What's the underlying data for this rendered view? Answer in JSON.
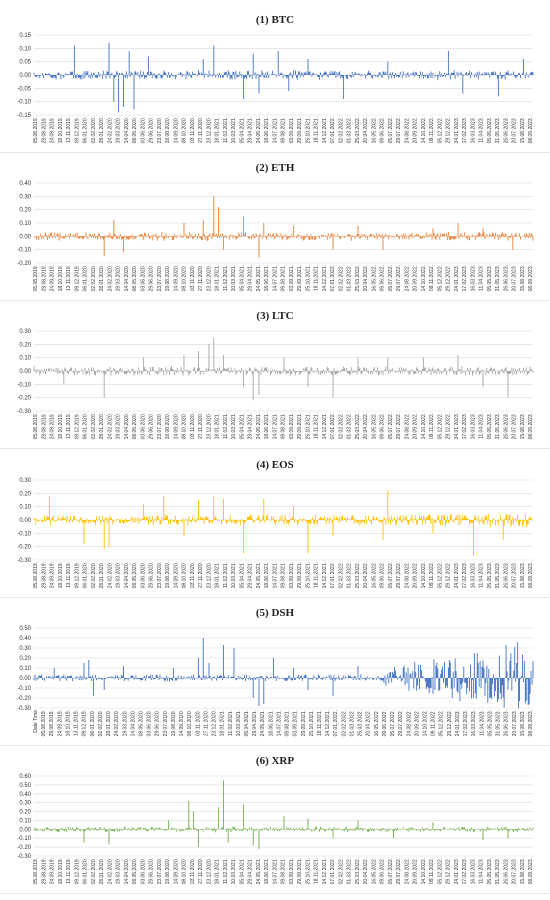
{
  "chart_data": [
    {
      "type": "line",
      "title": "(1) BTC",
      "color": "#4472C4",
      "ylim": [
        -0.15,
        0.15
      ],
      "yticks": [
        "0.15",
        "0.10",
        "0.05",
        "0.00",
        "-0.05",
        "-0.10",
        "-0.15"
      ],
      "xticks": [
        "05.08.2019.",
        "29.08.2019.",
        "24.09.2019.",
        "18.10.2019.",
        "13.11.2019.",
        "09.12.2019.",
        "06.01.2020.",
        "02.02.2020.",
        "28.01.2020.",
        "24.02.2020.",
        "19.03.2020.",
        "14.04.2020.",
        "08.05.2020.",
        "03.06.2020.",
        "29.06.2020.",
        "23.07.2020.",
        "19.08.2020.",
        "14.09.2020.",
        "08.10.2020.",
        "03.11.2020.",
        "27.11.2020.",
        "23.12.2020.",
        "18.01.2021.",
        "11.02.2021.",
        "10.03.2021.",
        "05.04.2021.",
        "29.04.2021.",
        "24.05.2021.",
        "18.06.2021.",
        "14.07.2021.",
        "09.08.2021.",
        "03.09.2021.",
        "29.09.2021.",
        "25.10.2021.",
        "18.11.2021.",
        "14.12.2021.",
        "07.01.2022.",
        "02.02.2022.",
        "01.03.2022.",
        "25.03.2022.",
        "20.04.2022.",
        "16.05.2022.",
        "09.06.2022.",
        "05.07.2022.",
        "29.07.2022.",
        "24.08.2022.",
        "20.09.2022.",
        "14.10.2022.",
        "09.11.2022.",
        "05.12.2022.",
        "29.12.2022.",
        "24.01.2023.",
        "17.02.2023.",
        "16.03.2023.",
        "11.04.2023.",
        "05.05.2023.",
        "31.05.2023.",
        "26.06.2023.",
        "20.07.2023.",
        "15.08.2023.",
        "08.09.2023."
      ],
      "base_amp": [
        0.012,
        0.02
      ],
      "spikes": [
        [
          0.08,
          0.11
        ],
        [
          0.15,
          0.12
        ],
        [
          0.16,
          -0.1
        ],
        [
          0.17,
          -0.14
        ],
        [
          0.18,
          -0.12
        ],
        [
          0.19,
          0.09
        ],
        [
          0.2,
          -0.13
        ],
        [
          0.23,
          0.07
        ],
        [
          0.34,
          0.06
        ],
        [
          0.36,
          0.11
        ],
        [
          0.42,
          -0.09
        ],
        [
          0.44,
          0.08
        ],
        [
          0.45,
          -0.07
        ],
        [
          0.49,
          0.09
        ],
        [
          0.51,
          -0.06
        ],
        [
          0.55,
          0.06
        ],
        [
          0.62,
          -0.09
        ],
        [
          0.71,
          0.05
        ],
        [
          0.83,
          0.09
        ],
        [
          0.86,
          -0.07
        ],
        [
          0.93,
          -0.08
        ],
        [
          0.98,
          0.06
        ]
      ],
      "late_growth": 0
    },
    {
      "type": "line",
      "title": "(2) ETH",
      "color": "#ED7D31",
      "ylim": [
        -0.2,
        0.4
      ],
      "yticks": [
        "0.40",
        "0.30",
        "0.20",
        "0.10",
        "0.00",
        "-0.10",
        "-0.20"
      ],
      "xticks": [
        "05.08.2019.",
        "29.08.2019.",
        "24.09.2019.",
        "18.10.2019.",
        "13.11.2019.",
        "09.12.2019.",
        "06.01.2020.",
        "02.02.2020.",
        "28.01.2020.",
        "24.02.2020.",
        "19.03.2020.",
        "14.04.2020.",
        "08.05.2020.",
        "03.06.2020.",
        "29.06.2020.",
        "23.07.2020.",
        "19.08.2020.",
        "14.09.2020.",
        "08.10.2020.",
        "03.11.2020.",
        "27.11.2020.",
        "23.12.2020.",
        "18.01.2021.",
        "11.02.2021.",
        "10.03.2021.",
        "05.04.2021.",
        "29.04.2021.",
        "24.05.2021.",
        "18.06.2021.",
        "14.07.2021.",
        "09.08.2021.",
        "03.09.2021.",
        "29.09.2021.",
        "25.10.2021.",
        "18.11.2021.",
        "14.12.2021.",
        "07.01.2022.",
        "02.02.2022.",
        "01.03.2022.",
        "25.03.2022.",
        "20.04.2022.",
        "16.05.2022.",
        "09.06.2022.",
        "05.07.2022.",
        "29.07.2022.",
        "24.08.2022.",
        "20.09.2022.",
        "14.10.2022.",
        "09.11.2022.",
        "05.12.2022.",
        "29.12.2022.",
        "24.01.2023.",
        "17.02.2023.",
        "16.03.2023.",
        "11.04.2023.",
        "05.05.2023.",
        "31.05.2023.",
        "26.06.2023.",
        "20.07.2023.",
        "15.08.2023.",
        "08.09.2023."
      ],
      "base_amp": [
        0.02,
        0.035
      ],
      "spikes": [
        [
          0.14,
          -0.15
        ],
        [
          0.16,
          0.12
        ],
        [
          0.18,
          -0.12
        ],
        [
          0.3,
          0.1
        ],
        [
          0.34,
          0.12
        ],
        [
          0.36,
          0.3
        ],
        [
          0.37,
          0.22
        ],
        [
          0.38,
          -0.1
        ],
        [
          0.42,
          0.15
        ],
        [
          0.45,
          -0.16
        ],
        [
          0.46,
          0.1
        ],
        [
          0.52,
          0.08
        ],
        [
          0.6,
          -0.1
        ],
        [
          0.65,
          0.08
        ],
        [
          0.7,
          -0.1
        ],
        [
          0.8,
          0.06
        ],
        [
          0.85,
          0.1
        ],
        [
          0.9,
          0.06
        ],
        [
          0.96,
          -0.1
        ]
      ],
      "late_growth": 0
    },
    {
      "type": "line",
      "title": "(3) LTC",
      "color": "#A5A5A5",
      "ylim": [
        -0.3,
        0.3
      ],
      "yticks": [
        "0.30",
        "0.20",
        "0.10",
        "0.00",
        "-0.10",
        "-0.20",
        "-0.30"
      ],
      "xticks": [
        "05.08.2019.",
        "29.08.2019.",
        "24.09.2019.",
        "18.10.2019.",
        "13.11.2019.",
        "09.12.2019.",
        "06.01.2020.",
        "02.02.2020.",
        "28.01.2020.",
        "24.02.2020.",
        "19.03.2020.",
        "14.04.2020.",
        "08.05.2020.",
        "03.06.2020.",
        "29.06.2020.",
        "23.07.2020.",
        "19.08.2020.",
        "14.09.2020.",
        "08.10.2020.",
        "03.11.2020.",
        "27.11.2020.",
        "23.12.2020.",
        "18.01.2021.",
        "11.02.2021.",
        "10.03.2021.",
        "05.04.2021.",
        "29.04.2021.",
        "24.05.2021.",
        "18.06.2021.",
        "14.07.2021.",
        "09.08.2021.",
        "03.09.2021.",
        "29.09.2021.",
        "25.10.2021.",
        "18.11.2021.",
        "14.12.2021.",
        "07.01.2022.",
        "02.02.2022.",
        "01.03.2022.",
        "25.03.2022.",
        "20.04.2022.",
        "16.05.2022.",
        "09.06.2022.",
        "05.07.2022.",
        "29.07.2022.",
        "24.08.2022.",
        "20.09.2022.",
        "14.10.2022.",
        "09.11.2022.",
        "05.12.2022.",
        "29.12.2022.",
        "24.01.2023.",
        "17.02.2023.",
        "16.03.2023.",
        "11.04.2023.",
        "05.05.2023.",
        "31.05.2023.",
        "26.06.2023.",
        "20.07.2023.",
        "15.08.2023.",
        "08.09.2023."
      ],
      "base_amp": [
        0.025,
        0.04
      ],
      "spikes": [
        [
          0.06,
          -0.1
        ],
        [
          0.14,
          -0.2
        ],
        [
          0.22,
          0.1
        ],
        [
          0.3,
          0.12
        ],
        [
          0.33,
          0.15
        ],
        [
          0.35,
          0.2
        ],
        [
          0.36,
          0.25
        ],
        [
          0.38,
          0.12
        ],
        [
          0.42,
          -0.12
        ],
        [
          0.44,
          -0.22
        ],
        [
          0.45,
          -0.18
        ],
        [
          0.5,
          0.1
        ],
        [
          0.55,
          -0.12
        ],
        [
          0.6,
          -0.2
        ],
        [
          0.65,
          0.1
        ],
        [
          0.71,
          0.1
        ],
        [
          0.78,
          0.1
        ],
        [
          0.85,
          0.12
        ],
        [
          0.9,
          -0.12
        ],
        [
          0.95,
          -0.2
        ]
      ],
      "late_growth": 0
    },
    {
      "type": "line",
      "title": "(4) EOS",
      "color": "#FFC000",
      "ylim": [
        -0.3,
        0.3
      ],
      "yticks": [
        "0.30",
        "0.20",
        "0.10",
        "0.00",
        "-0.10",
        "-0.20",
        "-0.30"
      ],
      "xticks": [
        "05.08.2019.",
        "29.08.2019.",
        "24.09.2019.",
        "18.10.2019.",
        "13.11.2019.",
        "09.12.2019.",
        "06.01.2020.",
        "02.02.2020.",
        "28.01.2020.",
        "24.02.2020.",
        "19.03.2020.",
        "14.04.2020.",
        "08.05.2020.",
        "03.06.2020.",
        "29.06.2020.",
        "23.07.2020.",
        "19.08.2020.",
        "14.09.2020.",
        "08.10.2020.",
        "03.11.2020.",
        "27.11.2020.",
        "23.12.2020.",
        "18.01.2021.",
        "11.02.2021.",
        "10.03.2021.",
        "05.04.2021.",
        "29.04.2021.",
        "24.05.2021.",
        "18.06.2021.",
        "14.07.2021.",
        "09.08.2021.",
        "03.09.2021.",
        "29.09.2021.",
        "25.10.2021.",
        "18.11.2021.",
        "14.12.2021.",
        "07.01.2022.",
        "02.02.2022.",
        "01.03.2022.",
        "25.03.2022.",
        "20.04.2022.",
        "16.05.2022.",
        "09.06.2022.",
        "05.07.2022.",
        "29.07.2022.",
        "24.08.2022.",
        "20.09.2022.",
        "14.10.2022.",
        "09.11.2022.",
        "05.12.2022.",
        "29.12.2022.",
        "24.01.2023.",
        "17.02.2023.",
        "16.03.2023.",
        "11.04.2023.",
        "05.05.2023.",
        "31.05.2023.",
        "26.06.2023.",
        "20.07.2023.",
        "15.08.2023.",
        "08.09.2023."
      ],
      "base_amp": [
        0.03,
        0.045
      ],
      "spikes": [
        [
          0.03,
          0.18
        ],
        [
          0.1,
          -0.18
        ],
        [
          0.14,
          -0.22
        ],
        [
          0.15,
          -0.2
        ],
        [
          0.22,
          0.12
        ],
        [
          0.26,
          0.18
        ],
        [
          0.3,
          -0.12
        ],
        [
          0.33,
          0.15
        ],
        [
          0.36,
          0.18
        ],
        [
          0.38,
          0.16
        ],
        [
          0.42,
          -0.25
        ],
        [
          0.46,
          0.16
        ],
        [
          0.52,
          0.1
        ],
        [
          0.55,
          -0.25
        ],
        [
          0.6,
          -0.12
        ],
        [
          0.7,
          -0.15
        ],
        [
          0.71,
          0.22
        ],
        [
          0.8,
          -0.1
        ],
        [
          0.88,
          -0.27
        ],
        [
          0.94,
          -0.15
        ]
      ],
      "late_growth": 0.5
    },
    {
      "type": "line",
      "title": "(5) DSH",
      "color": "#4472C4",
      "ylim": [
        -0.3,
        0.5
      ],
      "yticks": [
        "0.50",
        "0.40",
        "0.30",
        "0.20",
        "0.10",
        "0.00",
        "-0.10",
        "-0.20",
        "-0.30"
      ],
      "xticks": [
        "Date Time",
        "05.08.2019.",
        "29.08.2019.",
        "24.09.2019.",
        "18.10.2019.",
        "13.11.2019.",
        "09.12.2019.",
        "06.01.2020.",
        "02.02.2020.",
        "28.01.2020.",
        "24.02.2020.",
        "19.03.2020.",
        "14.04.2020.",
        "08.05.2020.",
        "03.06.2020.",
        "29.06.2020.",
        "23.07.2020.",
        "19.08.2020.",
        "14.09.2020.",
        "08.10.2020.",
        "03.11.2020.",
        "27.11.2020.",
        "23.12.2020.",
        "18.01.2021.",
        "11.02.2021.",
        "10.03.2021.",
        "05.04.2021.",
        "29.04.2021.",
        "24.05.2021.",
        "18.06.2021.",
        "14.07.2021.",
        "09.08.2021.",
        "03.09.2021.",
        "29.09.2021.",
        "25.10.2021.",
        "18.11.2021.",
        "14.12.2021.",
        "07.01.2022.",
        "02.02.2022.",
        "01.03.2022.",
        "25.03.2022.",
        "20.04.2022.",
        "16.05.2022.",
        "09.06.2022.",
        "05.07.2022.",
        "29.07.2022.",
        "24.08.2022.",
        "20.09.2022.",
        "14.10.2022.",
        "09.11.2022.",
        "05.12.2022.",
        "29.12.2022.",
        "24.01.2023.",
        "17.02.2023.",
        "16.03.2023.",
        "11.04.2023.",
        "05.05.2023.",
        "31.05.2023.",
        "26.06.2023.",
        "20.07.2023.",
        "15.08.2023.",
        "08.09.2023."
      ],
      "base_amp": [
        0.02,
        0.04
      ],
      "spikes": [
        [
          0.04,
          0.1
        ],
        [
          0.1,
          0.15
        ],
        [
          0.11,
          0.18
        ],
        [
          0.12,
          -0.18
        ],
        [
          0.14,
          -0.12
        ],
        [
          0.18,
          0.12
        ],
        [
          0.28,
          0.1
        ],
        [
          0.33,
          0.2
        ],
        [
          0.34,
          0.4
        ],
        [
          0.35,
          0.15
        ],
        [
          0.38,
          0.33
        ],
        [
          0.4,
          0.3
        ],
        [
          0.44,
          -0.2
        ],
        [
          0.45,
          -0.28
        ],
        [
          0.46,
          -0.26
        ],
        [
          0.48,
          0.2
        ],
        [
          0.52,
          0.1
        ],
        [
          0.55,
          -0.12
        ],
        [
          0.6,
          -0.18
        ],
        [
          0.65,
          0.12
        ]
      ],
      "late_growth": 4.5
    },
    {
      "type": "line",
      "title": "(6) XRP",
      "color": "#70AD47",
      "ylim": [
        -0.3,
        0.6
      ],
      "yticks": [
        "0.60",
        "0.50",
        "0.40",
        "0.30",
        "0.20",
        "0.10",
        "0.00",
        "-0.10",
        "-0.20",
        "-0.30"
      ],
      "xticks": [
        "05.08.2019.",
        "29.08.2019.",
        "24.09.2019.",
        "18.10.2019.",
        "13.11.2019.",
        "09.12.2019.",
        "06.01.2020.",
        "02.02.2020.",
        "28.01.2020.",
        "24.02.2020.",
        "19.03.2020.",
        "14.04.2020.",
        "08.05.2020.",
        "03.06.2020.",
        "29.06.2020.",
        "23.07.2020.",
        "19.08.2020.",
        "14.09.2020.",
        "08.10.2020.",
        "03.11.2020.",
        "27.11.2020.",
        "23.12.2020.",
        "18.01.2021.",
        "11.02.2021.",
        "10.03.2021.",
        "05.04.2021.",
        "29.04.2021.",
        "24.05.2021.",
        "18.06.2021.",
        "14.07.2021.",
        "09.08.2021.",
        "03.09.2021.",
        "29.09.2021.",
        "25.10.2021.",
        "18.11.2021.",
        "14.12.2021.",
        "07.01.2022.",
        "02.02.2022.",
        "01.03.2022.",
        "25.03.2022.",
        "20.04.2022.",
        "16.05.2022.",
        "09.06.2022.",
        "05.07.2022.",
        "29.07.2022.",
        "24.08.2022.",
        "20.09.2022.",
        "14.10.2022.",
        "09.11.2022.",
        "05.12.2022.",
        "29.12.2022.",
        "24.01.2023.",
        "17.02.2023.",
        "16.03.2023.",
        "11.04.2023.",
        "05.05.2023.",
        "31.05.2023.",
        "26.06.2023.",
        "20.07.2023.",
        "15.08.2023.",
        "08.09.2023."
      ],
      "base_amp": [
        0.02,
        0.035
      ],
      "spikes": [
        [
          0.1,
          -0.15
        ],
        [
          0.15,
          -0.17
        ],
        [
          0.27,
          0.1
        ],
        [
          0.31,
          0.32
        ],
        [
          0.32,
          0.2
        ],
        [
          0.33,
          -0.2
        ],
        [
          0.37,
          0.25
        ],
        [
          0.38,
          0.55
        ],
        [
          0.39,
          -0.15
        ],
        [
          0.42,
          0.28
        ],
        [
          0.44,
          -0.18
        ],
        [
          0.45,
          -0.22
        ],
        [
          0.5,
          0.15
        ],
        [
          0.55,
          0.12
        ],
        [
          0.6,
          -0.1
        ],
        [
          0.65,
          0.1
        ],
        [
          0.72,
          -0.1
        ],
        [
          0.8,
          0.08
        ],
        [
          0.9,
          -0.12
        ],
        [
          0.95,
          -0.1
        ]
      ],
      "late_growth": 0
    }
  ]
}
